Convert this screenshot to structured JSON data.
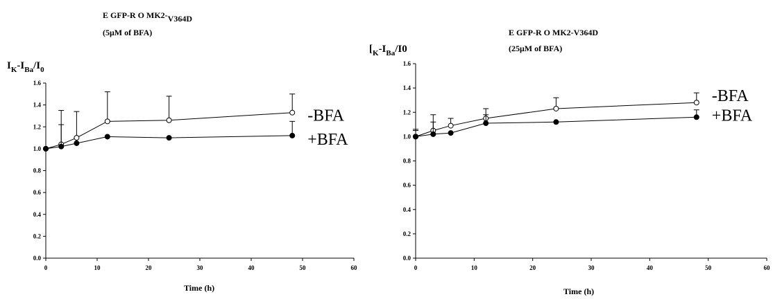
{
  "chart_data": [
    {
      "type": "line",
      "title_line1_main": "E GFP-R O MK2-",
      "title_line1_tail": "V364D",
      "title_line2": "(5μM of BFA)",
      "ylabel_main": "I",
      "ylabel_sub1": "K",
      "ylabel_mid": "-I",
      "ylabel_sub2": "Ba",
      "ylabel_mid2": "/I",
      "ylabel_sub3": "0",
      "xlabel": "Time (h)",
      "xlim": [
        0,
        60
      ],
      "ylim": [
        0,
        1.6
      ],
      "x_ticks": [
        "0",
        "10",
        "20",
        "30",
        "40",
        "50",
        "60"
      ],
      "y_ticks": [
        "0.0",
        "0.2",
        "0.4",
        "0.6",
        "0.8",
        "1.0",
        "1.2",
        "1.4",
        "1.6"
      ],
      "series": [
        {
          "name": "-BFA",
          "marker": "open-circle",
          "x": [
            0,
            3,
            6,
            12,
            24,
            48
          ],
          "y": [
            1.0,
            1.04,
            1.1,
            1.25,
            1.26,
            1.33
          ],
          "err": [
            0,
            0.31,
            0.24,
            0.27,
            0.22,
            0.17
          ]
        },
        {
          "name": "+BFA",
          "marker": "filled-circle",
          "x": [
            0,
            3,
            6,
            12,
            24,
            48
          ],
          "y": [
            1.0,
            1.02,
            1.05,
            1.11,
            1.1,
            1.12
          ],
          "err": [
            0,
            0.2,
            0.0,
            0.0,
            0.0,
            0.13
          ]
        }
      ]
    },
    {
      "type": "line",
      "title_line1_main": "E GFP-R O MK2-V364D",
      "title_line1_tail": "",
      "title_line2": "(25μM of BFA)",
      "ylabel_main": "[",
      "ylabel_sub1": "K",
      "ylabel_mid": "-I",
      "ylabel_sub2": "Ba",
      "ylabel_mid2": "/I0",
      "ylabel_sub3": "",
      "xlabel": "Time (h)",
      "xlim": [
        0,
        60
      ],
      "ylim": [
        0,
        1.6
      ],
      "x_ticks": [
        "0",
        "10",
        "20",
        "30",
        "40",
        "50",
        "60"
      ],
      "y_ticks": [
        "0.0",
        "0.2",
        "0.4",
        "0.6",
        "0.8",
        "1.0",
        "1.2",
        "1.4",
        "1.6"
      ],
      "series": [
        {
          "name": "-BFA",
          "marker": "open-circle",
          "x": [
            0,
            3,
            6,
            12,
            24,
            48
          ],
          "y": [
            1.0,
            1.05,
            1.09,
            1.15,
            1.23,
            1.28
          ],
          "err": [
            0.06,
            0.13,
            0.06,
            0.08,
            0.09,
            0.08
          ]
        },
        {
          "name": "+BFA",
          "marker": "filled-circle",
          "x": [
            0,
            3,
            6,
            12,
            24,
            48
          ],
          "y": [
            1.0,
            1.02,
            1.03,
            1.11,
            1.12,
            1.16
          ],
          "err": [
            0.05,
            0.1,
            0.0,
            0.07,
            0.0,
            0.06
          ]
        }
      ]
    }
  ]
}
